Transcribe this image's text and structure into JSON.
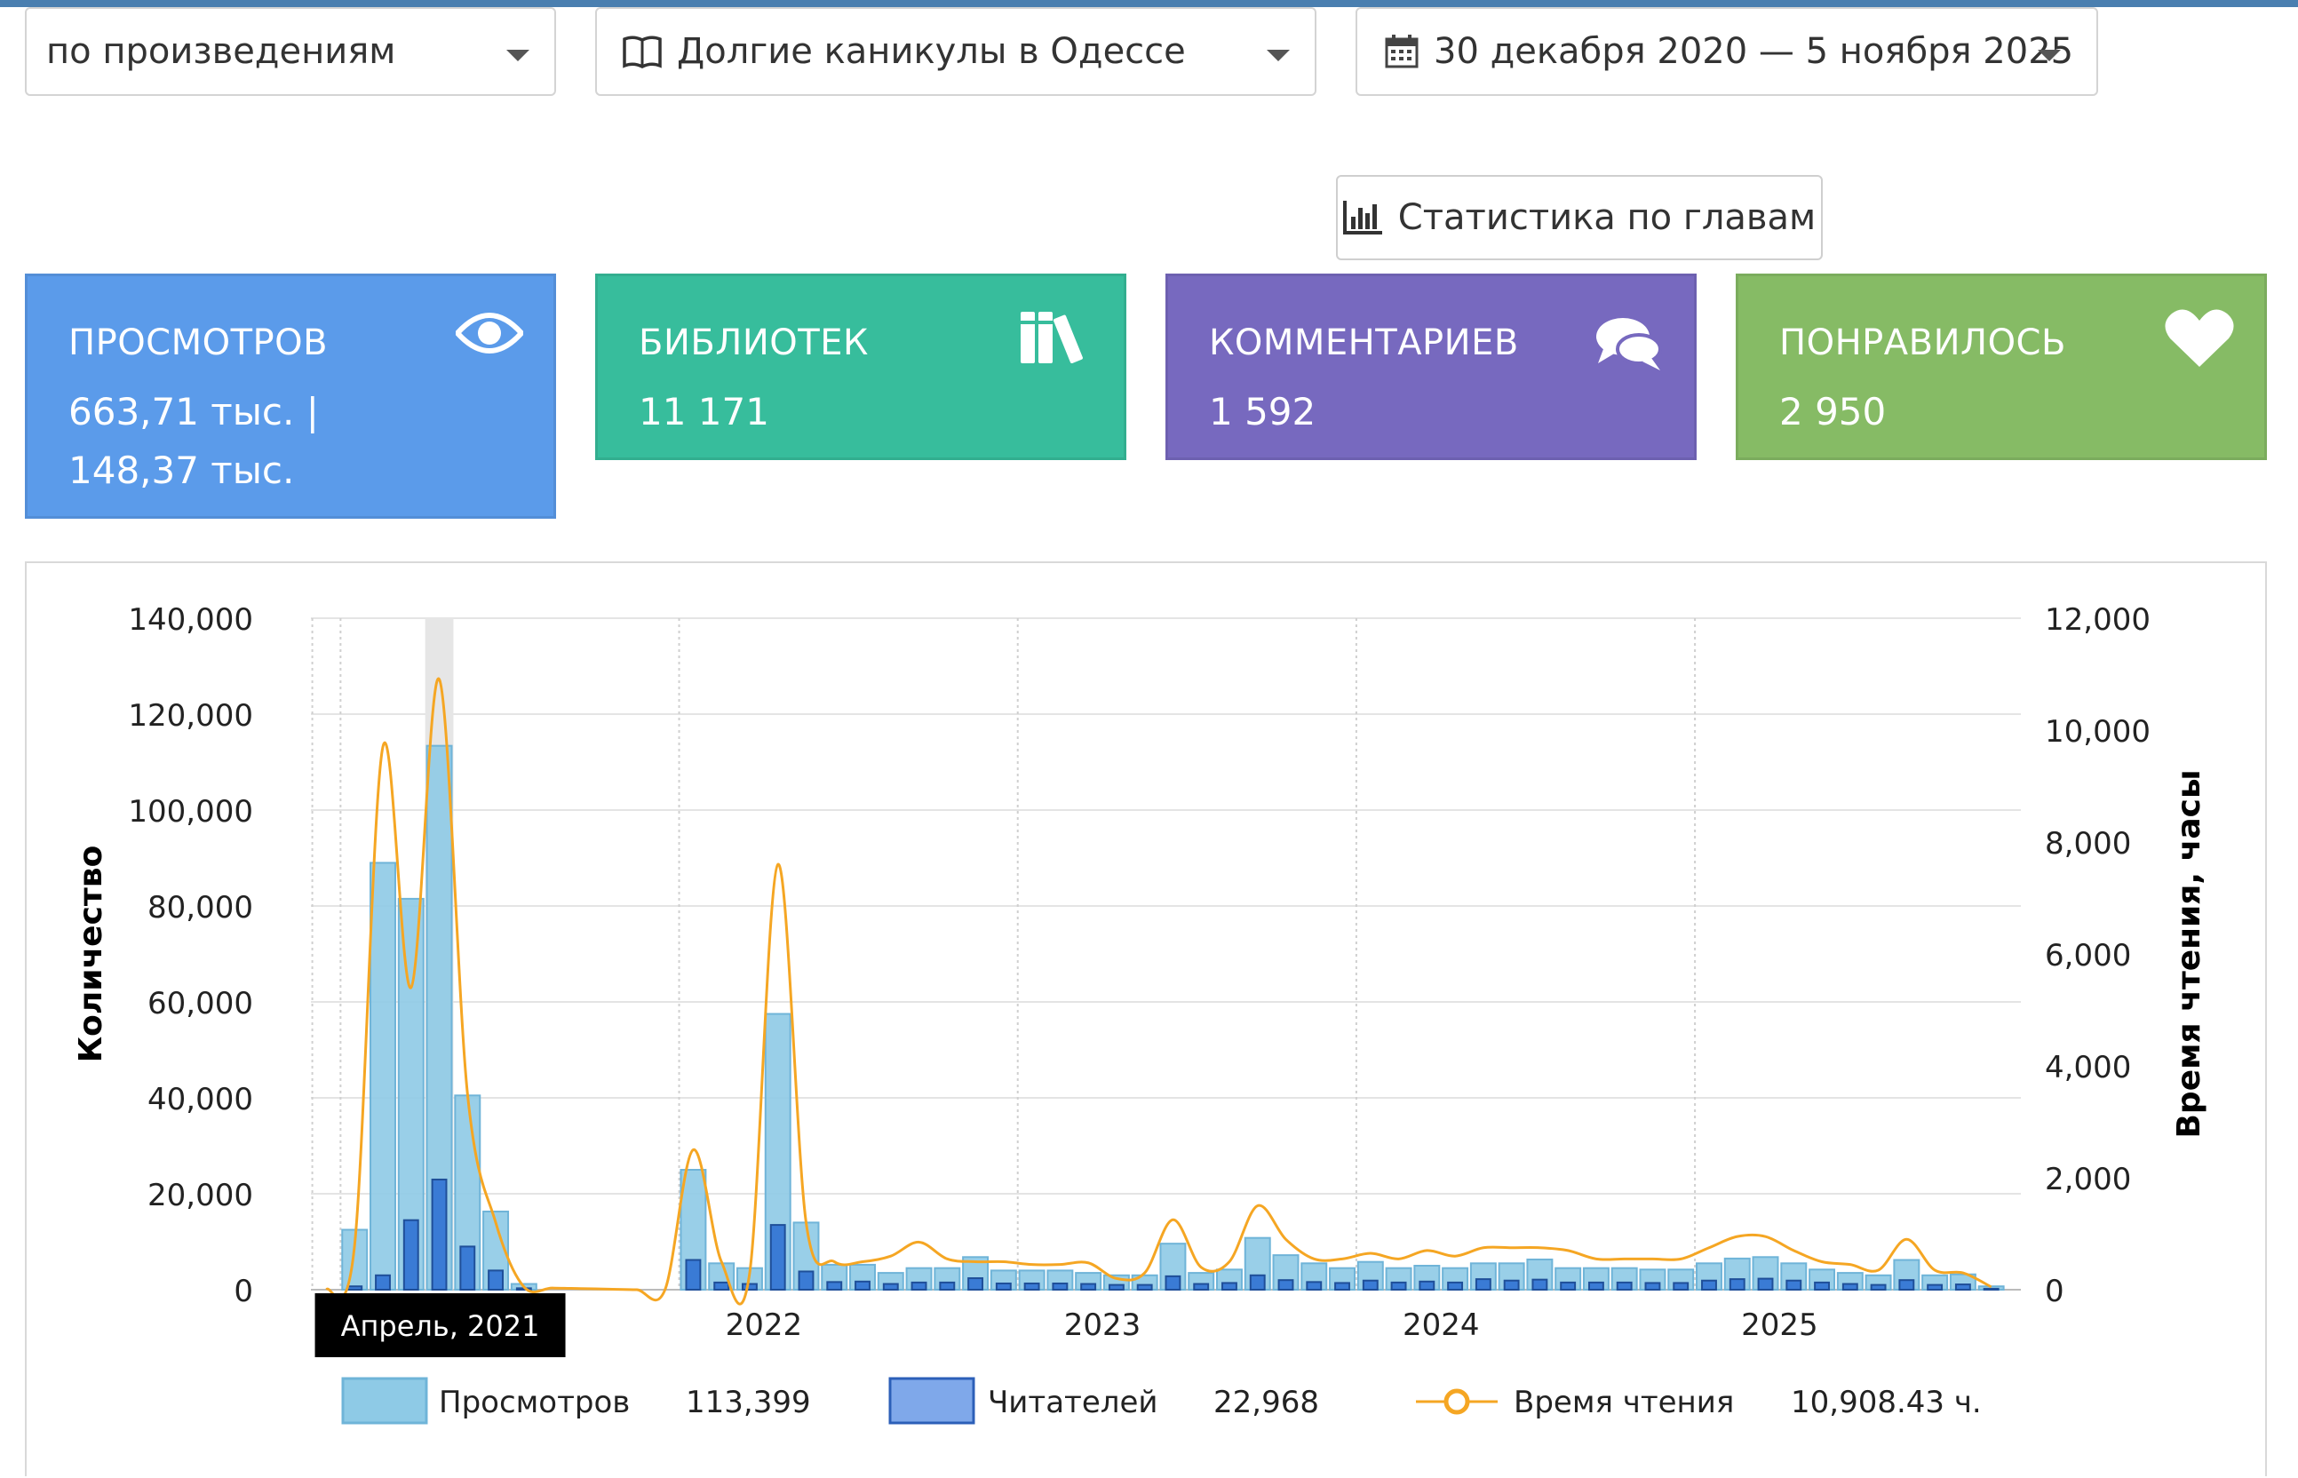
{
  "filters": {
    "mode_select": "по произведениям",
    "work_select": "Долгие каникулы в Одессе",
    "date_range": "30 декабря 2020 — 5 ноября 2025"
  },
  "chapters_button": "Статистика по главам",
  "cards": {
    "views": {
      "title": "ПРОСМОТРОВ",
      "line1": "663,71 тыс. |",
      "line2": "148,37 тыс.",
      "color": "#5b9bea",
      "icon": "eye-icon"
    },
    "libraries": {
      "title": "БИБЛИОТЕК",
      "value": "11 171",
      "color": "#37bd9c",
      "icon": "books-icon"
    },
    "comments": {
      "title": "КОММЕНТАРИЕВ",
      "value": "1 592",
      "color": "#7769bf",
      "icon": "comments-icon"
    },
    "likes": {
      "title": "ПОНРАВИЛОСЬ",
      "value": "2 950",
      "color": "#86bb65",
      "icon": "heart-icon"
    }
  },
  "chart_data": {
    "type": "bar",
    "ylabel": "Количество",
    "y2label": "Время чтения, часы",
    "ylim": [
      0,
      140000
    ],
    "y2lim": [
      0,
      12000
    ],
    "yticks": [
      "0",
      "20,000",
      "40,000",
      "60,000",
      "80,000",
      "100,000",
      "120,000",
      "140,000"
    ],
    "y2ticks": [
      "0",
      "2,000",
      "4,000",
      "6,000",
      "8,000",
      "10,000",
      "12,000"
    ],
    "year_labels": [
      "2022",
      "2023",
      "2024",
      "2025"
    ],
    "tooltip": "Апрель, 2021",
    "grid": true,
    "legend_position": "bottom",
    "colors": {
      "views": "#8ecae6",
      "readers": "#3a7bd5",
      "time": "#f5a623"
    },
    "months": [
      "2020-12",
      "2021-01",
      "2021-02",
      "2021-03",
      "2021-04",
      "2021-05",
      "2021-06",
      "2021-07",
      "2021-08",
      "2021-09",
      "2021-10",
      "2021-11",
      "2021-12",
      "2022-01",
      "2022-02",
      "2022-03",
      "2022-04",
      "2022-05",
      "2022-06",
      "2022-07",
      "2022-08",
      "2022-09",
      "2022-10",
      "2022-11",
      "2022-12",
      "2023-01",
      "2023-02",
      "2023-03",
      "2023-04",
      "2023-05",
      "2023-06",
      "2023-07",
      "2023-08",
      "2023-09",
      "2023-10",
      "2023-11",
      "2023-12",
      "2024-01",
      "2024-02",
      "2024-03",
      "2024-04",
      "2024-05",
      "2024-06",
      "2024-07",
      "2024-08",
      "2024-09",
      "2024-10",
      "2024-11",
      "2024-12",
      "2025-01",
      "2025-02",
      "2025-03",
      "2025-04",
      "2025-05",
      "2025-06",
      "2025-07",
      "2025-08",
      "2025-09",
      "2025-10",
      "2025-11"
    ],
    "series": [
      {
        "name": "Просмотров",
        "axis": "left",
        "legend_value": "113,399",
        "values": [
          0,
          12500,
          89000,
          81500,
          113399,
          40500,
          16300,
          1200,
          0,
          0,
          0,
          0,
          0,
          25000,
          5500,
          4500,
          57500,
          14000,
          5200,
          5200,
          3500,
          4500,
          4500,
          6800,
          4000,
          4000,
          4000,
          3500,
          3000,
          3000,
          9600,
          3500,
          4200,
          10800,
          7200,
          5500,
          4500,
          5800,
          4500,
          5000,
          4500,
          5500,
          5500,
          6300,
          4500,
          4500,
          4500,
          4200,
          4200,
          5500,
          6500,
          6800,
          5500,
          4200,
          3500,
          3000,
          6200,
          3000,
          3200,
          700
        ]
      },
      {
        "name": "Читателей",
        "axis": "left",
        "legend_value": "22,968",
        "values": [
          0,
          700,
          3000,
          14500,
          22968,
          9000,
          4000,
          300,
          0,
          0,
          0,
          0,
          0,
          6200,
          1500,
          1200,
          13500,
          3800,
          1600,
          1700,
          1200,
          1500,
          1500,
          2400,
          1300,
          1300,
          1300,
          1200,
          1000,
          1000,
          2800,
          1200,
          1400,
          3000,
          2000,
          1600,
          1400,
          1900,
          1500,
          1700,
          1500,
          2200,
          1900,
          2100,
          1500,
          1500,
          1500,
          1400,
          1400,
          1900,
          2200,
          2300,
          1900,
          1500,
          1200,
          1000,
          2000,
          1000,
          1100,
          200
        ]
      },
      {
        "name": "Время чтения",
        "axis": "right",
        "legend_value": "10,908.43 ч.",
        "values": [
          0,
          800,
          9700,
          5400,
          10908,
          3500,
          1200,
          50,
          30,
          20,
          10,
          0,
          0,
          2500,
          500,
          300,
          7600,
          1200,
          500,
          500,
          600,
          850,
          550,
          500,
          500,
          450,
          450,
          480,
          200,
          300,
          1250,
          400,
          500,
          1500,
          900,
          550,
          550,
          650,
          550,
          700,
          600,
          750,
          750,
          750,
          700,
          550,
          550,
          550,
          550,
          750,
          950,
          950,
          700,
          500,
          450,
          350,
          900,
          350,
          300,
          50
        ]
      }
    ]
  }
}
